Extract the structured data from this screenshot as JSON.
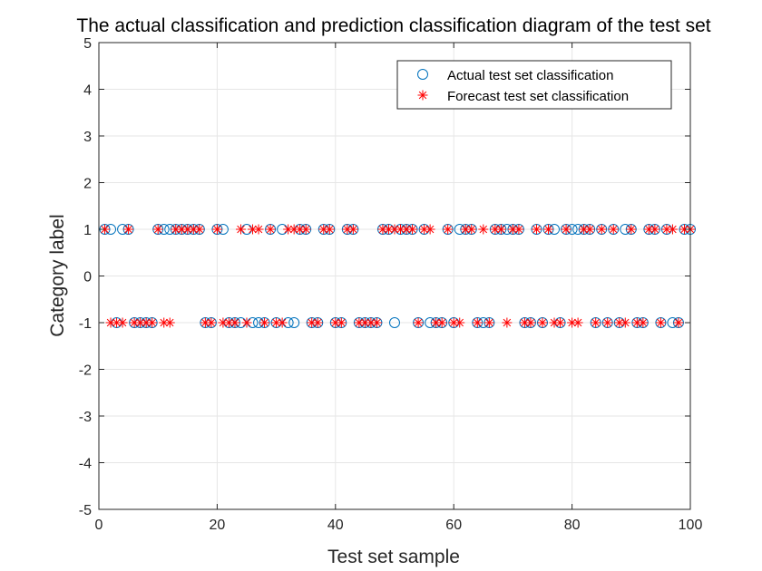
{
  "chart_data": {
    "type": "scatter",
    "title": "The actual classification and prediction classification diagram of the test set",
    "xlabel": "Test set sample",
    "ylabel": "Category label",
    "xlim": [
      0,
      100
    ],
    "ylim": [
      -5,
      5
    ],
    "x_ticks": [
      0,
      20,
      40,
      60,
      80,
      100
    ],
    "y_ticks": [
      5,
      4,
      3,
      2,
      1,
      0,
      -1,
      -2,
      -3,
      -4,
      -5
    ],
    "grid": true,
    "legend": {
      "position": "top-right",
      "entries": [
        "Actual test set classification",
        "Forecast test set classification"
      ]
    },
    "colors": {
      "actual": "#0072BD",
      "forecast": "#FF0000",
      "grid": "#E6E6E6",
      "axis": "#262626"
    },
    "series": [
      {
        "name": "Actual test set classification",
        "marker": "circle",
        "x": [
          1,
          2,
          3,
          4,
          5,
          6,
          7,
          8,
          9,
          10,
          11,
          12,
          13,
          14,
          15,
          16,
          17,
          18,
          19,
          20,
          21,
          22,
          23,
          24,
          25,
          26,
          27,
          28,
          29,
          30,
          31,
          32,
          33,
          34,
          35,
          36,
          37,
          38,
          39,
          40,
          41,
          42,
          43,
          44,
          45,
          46,
          47,
          48,
          49,
          50,
          51,
          52,
          53,
          54,
          55,
          56,
          57,
          58,
          59,
          60,
          61,
          62,
          63,
          64,
          65,
          66,
          67,
          68,
          69,
          70,
          71,
          72,
          73,
          74,
          75,
          76,
          77,
          78,
          79,
          80,
          81,
          82,
          83,
          84,
          85,
          86,
          87,
          88,
          89,
          90,
          91,
          92,
          93,
          94,
          95,
          96,
          97,
          98,
          99,
          100
        ],
        "y": [
          1,
          1,
          -1,
          1,
          1,
          -1,
          -1,
          -1,
          -1,
          1,
          1,
          1,
          1,
          1,
          1,
          1,
          1,
          -1,
          -1,
          1,
          1,
          -1,
          -1,
          -1,
          1,
          -1,
          -1,
          -1,
          1,
          -1,
          1,
          -1,
          -1,
          1,
          1,
          -1,
          -1,
          1,
          1,
          -1,
          -1,
          1,
          1,
          -1,
          -1,
          -1,
          -1,
          1,
          1,
          -1,
          1,
          1,
          1,
          -1,
          1,
          -1,
          -1,
          -1,
          1,
          -1,
          1,
          1,
          1,
          -1,
          -1,
          -1,
          1,
          1,
          1,
          1,
          1,
          -1,
          -1,
          1,
          -1,
          1,
          1,
          -1,
          1,
          1,
          1,
          1,
          1,
          -1,
          1,
          -1,
          1,
          -1,
          1,
          1,
          -1,
          -1,
          1,
          1,
          -1,
          1,
          -1,
          -1,
          1,
          1
        ]
      },
      {
        "name": "Forecast test set classification",
        "marker": "asterisk",
        "x": [
          1,
          2,
          3,
          4,
          5,
          6,
          7,
          8,
          9,
          10,
          11,
          12,
          13,
          14,
          15,
          16,
          17,
          18,
          19,
          20,
          21,
          22,
          23,
          24,
          25,
          26,
          27,
          28,
          29,
          30,
          31,
          32,
          33,
          34,
          35,
          36,
          37,
          38,
          39,
          40,
          41,
          42,
          43,
          44,
          45,
          46,
          47,
          48,
          49,
          50,
          51,
          52,
          53,
          54,
          55,
          56,
          57,
          58,
          59,
          60,
          61,
          62,
          63,
          64,
          65,
          66,
          67,
          68,
          69,
          70,
          71,
          72,
          73,
          74,
          75,
          76,
          77,
          78,
          79,
          80,
          81,
          82,
          83,
          84,
          85,
          86,
          87,
          88,
          89,
          90,
          91,
          92,
          93,
          94,
          95,
          96,
          97,
          98,
          99,
          100
        ],
        "y": [
          1,
          -1,
          -1,
          -1,
          1,
          -1,
          -1,
          -1,
          -1,
          1,
          -1,
          -1,
          1,
          1,
          1,
          1,
          1,
          -1,
          -1,
          1,
          -1,
          -1,
          -1,
          1,
          -1,
          1,
          1,
          -1,
          1,
          -1,
          -1,
          1,
          1,
          1,
          1,
          -1,
          -1,
          1,
          1,
          -1,
          -1,
          1,
          1,
          -1,
          -1,
          -1,
          -1,
          1,
          1,
          1,
          1,
          1,
          1,
          -1,
          1,
          1,
          -1,
          -1,
          1,
          -1,
          -1,
          1,
          1,
          -1,
          1,
          -1,
          1,
          1,
          -1,
          1,
          1,
          -1,
          -1,
          1,
          -1,
          1,
          -1,
          -1,
          1,
          -1,
          -1,
          1,
          1,
          -1,
          1,
          -1,
          1,
          -1,
          -1,
          1,
          -1,
          -1,
          1,
          1,
          -1,
          1,
          1,
          -1,
          1,
          1
        ]
      }
    ]
  }
}
